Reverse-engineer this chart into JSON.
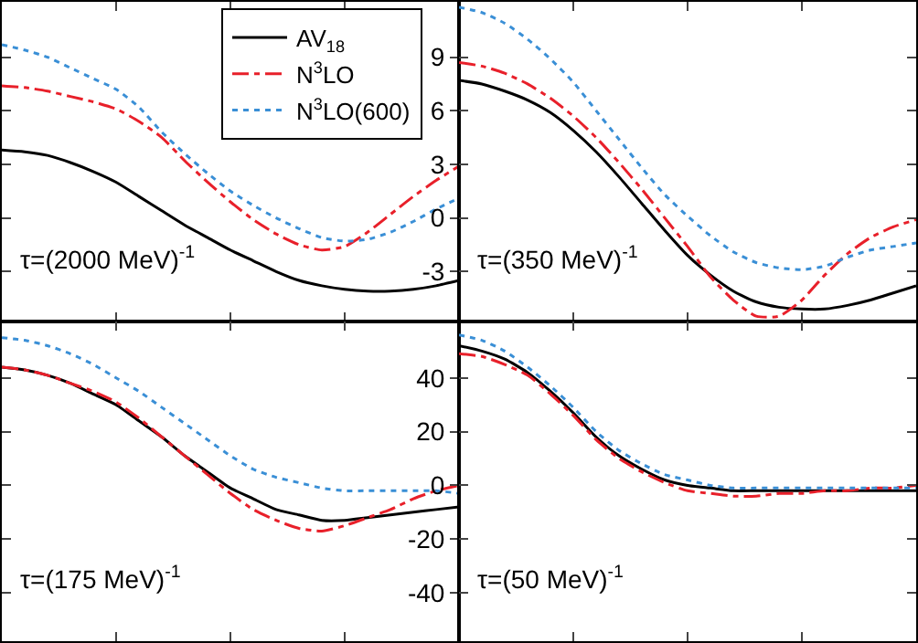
{
  "chart_data": [
    {
      "type": "line",
      "categories": [
        null,
        null,
        null,
        null,
        null,
        null,
        null,
        null,
        null,
        null,
        null,
        null,
        null,
        null,
        null,
        null,
        null,
        null,
        null,
        null,
        null
      ],
      "ylim": [
        -5.8,
        12.1
      ],
      "yticks": [
        -3,
        0,
        3,
        6,
        9
      ],
      "tick_labels": false,
      "legend": "top right",
      "annotations": [
        "τ=(2000 MeV)$^{-1}$"
      ],
      "series": [
        {
          "name": "AV$_{18}$",
          "color": "#000000",
          "line_style": "solid",
          "values": [
            3.8,
            3.7,
            3.5,
            3.1,
            2.6,
            2.0,
            1.2,
            0.4,
            -0.4,
            -1.1,
            -1.8,
            -2.4,
            -3.0,
            -3.5,
            -3.8,
            -4.0,
            -4.1,
            -4.1,
            -4.0,
            -3.8,
            -3.5
          ]
        },
        {
          "name": "N$^{3}$LO",
          "color": "#e8202a",
          "line_style": "dashed",
          "values": [
            7.4,
            7.3,
            7.1,
            6.8,
            6.5,
            6.1,
            5.4,
            4.5,
            3.2,
            2.0,
            0.9,
            -0.1,
            -0.9,
            -1.5,
            -1.8,
            -1.6,
            -0.8,
            0.2,
            1.2,
            2.1,
            2.9
          ]
        },
        {
          "name": "N$^{3}$LO(600)",
          "color": "#3a8fd6",
          "line_style": "dotted",
          "values": [
            9.7,
            9.4,
            9.0,
            8.4,
            7.8,
            7.2,
            6.2,
            4.8,
            3.6,
            2.5,
            1.5,
            0.7,
            0,
            -0.6,
            -1.1,
            -1.3,
            -1.2,
            -0.8,
            -0.2,
            0.5,
            1.1
          ]
        }
      ]
    },
    {
      "type": "line",
      "categories": [
        null,
        null,
        null,
        null,
        null,
        null,
        null,
        null,
        null,
        null,
        null,
        null,
        null,
        null,
        null,
        null,
        null,
        null,
        null,
        null,
        null
      ],
      "ylim": [
        -5.8,
        12.1
      ],
      "yticks": [
        -3,
        0,
        3,
        6,
        9
      ],
      "tick_labels": "y",
      "annotations": [
        "τ=(350 MeV)$^{-1}$"
      ],
      "series": [
        {
          "color": "#000000",
          "line_style": "solid",
          "values": [
            7.7,
            7.5,
            7.1,
            6.6,
            5.9,
            4.9,
            3.7,
            2.3,
            0.8,
            -0.7,
            -2.1,
            -3.2,
            -4.1,
            -4.7,
            -5.0,
            -5.1,
            -5.1,
            -4.9,
            -4.6,
            -4.2,
            -3.8
          ]
        },
        {
          "color": "#e8202a",
          "line_style": "dashed",
          "values": [
            8.7,
            8.5,
            8.1,
            7.5,
            6.7,
            5.7,
            4.5,
            3.1,
            1.6,
            0,
            -1.6,
            -3.3,
            -4.6,
            -5.5,
            -5.5,
            -4.6,
            -3.2,
            -2.0,
            -1.1,
            -0.5,
            -0.1
          ]
        },
        {
          "color": "#3a8fd6",
          "line_style": "dotted",
          "values": [
            11.8,
            11.5,
            10.9,
            10.0,
            8.9,
            7.6,
            6.0,
            4.4,
            2.8,
            1.3,
            0.1,
            -1.0,
            -1.9,
            -2.5,
            -2.8,
            -2.9,
            -2.7,
            -2.2,
            -1.8,
            -1.6,
            -1.4
          ]
        }
      ]
    },
    {
      "type": "line",
      "categories": [
        null,
        null,
        null,
        null,
        null,
        null,
        null,
        null,
        null,
        null,
        null,
        null,
        null,
        null,
        null,
        null,
        null,
        null,
        null,
        null,
        null
      ],
      "ylim": [
        -58,
        61
      ],
      "yticks": [
        -40,
        -20,
        0,
        20,
        40
      ],
      "tick_labels": false,
      "annotations": [
        "τ=(175 MeV)$^{-1}$"
      ],
      "series": [
        {
          "color": "#000000",
          "line_style": "solid",
          "values": [
            44,
            43,
            41,
            38,
            34,
            30,
            24,
            18,
            11,
            5,
            -1,
            -5,
            -9,
            -11,
            -13,
            -13,
            -12,
            -11,
            -10,
            -9,
            -8
          ]
        },
        {
          "color": "#e8202a",
          "line_style": "dashed",
          "values": [
            44,
            43,
            41,
            38,
            35,
            31,
            25,
            18,
            11,
            4,
            -3,
            -9,
            -13,
            -16,
            -17,
            -15,
            -12,
            -9,
            -5,
            -2,
            0
          ]
        },
        {
          "color": "#3a8fd6",
          "line_style": "dotted",
          "values": [
            55,
            54,
            52,
            49,
            45,
            40,
            35,
            29,
            23,
            17,
            11,
            6,
            3,
            1,
            -1,
            -2,
            -2,
            -2,
            -2,
            -2,
            -3
          ]
        }
      ]
    },
    {
      "type": "line",
      "categories": [
        null,
        null,
        null,
        null,
        null,
        null,
        null,
        null,
        null,
        null,
        null,
        null,
        null,
        null,
        null,
        null,
        null,
        null,
        null,
        null,
        null
      ],
      "ylim": [
        -58,
        61
      ],
      "yticks": [
        -40,
        -20,
        0,
        20,
        40
      ],
      "tick_labels": "y",
      "annotations": [
        "τ=(50 MeV)$^{-1}$"
      ],
      "series": [
        {
          "color": "#000000",
          "line_style": "solid",
          "values": [
            52,
            50,
            47,
            42,
            35,
            27,
            18,
            11,
            6,
            2,
            0,
            -1,
            -2,
            -2,
            -2,
            -2,
            -2,
            -2,
            -2,
            -2,
            -2
          ]
        },
        {
          "color": "#e8202a",
          "line_style": "dashed",
          "values": [
            49,
            48,
            45,
            41,
            34,
            26,
            17,
            10,
            5,
            1,
            -2,
            -3,
            -4,
            -4,
            -3,
            -3,
            -2,
            -2,
            -1,
            -1,
            0
          ]
        },
        {
          "color": "#3a8fd6",
          "line_style": "dotted",
          "values": [
            56,
            54,
            50,
            44,
            37,
            29,
            20,
            13,
            8,
            4,
            2,
            0,
            -1,
            -1,
            -1,
            -1,
            -1,
            -1,
            -1,
            -1,
            -1
          ]
        }
      ]
    }
  ]
}
